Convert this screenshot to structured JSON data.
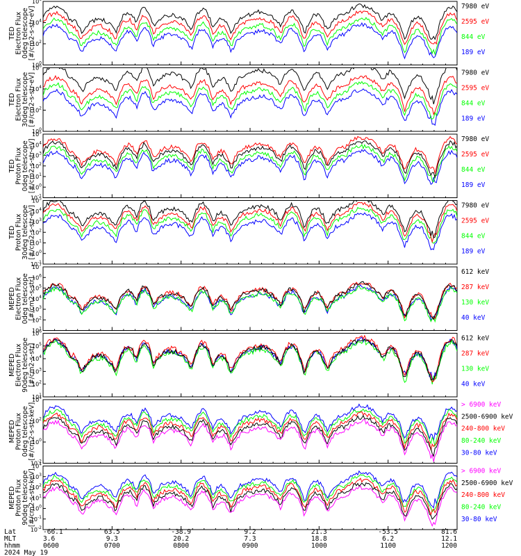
{
  "colors": {
    "blue": "#0000ff",
    "red": "#ff0000",
    "green": "#00ff00",
    "black": "#000000",
    "magenta": "#ff00ff"
  },
  "chart_data": [
    {
      "type": "line",
      "ylabel": [
        "TED",
        "Electron Flux",
        "0deg telescope",
        "[#/cm2-s-str-eV]"
      ],
      "yscale": "log",
      "ylim_exp": [
        0,
        6
      ],
      "yticks": [
        "10^0",
        "10^2",
        "10^4",
        "10^6"
      ],
      "legend": [
        {
          "name": "7980 eV",
          "color": "#000000"
        },
        {
          "name": "2595 eV",
          "color": "#ff0000"
        },
        {
          "name": "844 eV",
          "color": "#00ff00"
        },
        {
          "name": "189 eV",
          "color": "#0000ff"
        }
      ],
      "series_levels": [
        2.3,
        1.8,
        1.3,
        0.9
      ]
    },
    {
      "type": "line",
      "ylabel": [
        "TED",
        "Electron Flux",
        "30deg telescope",
        "[#/cm2-s-str-eV]"
      ],
      "yscale": "log",
      "ylim_exp": [
        0,
        6
      ],
      "yticks": [
        "10^0",
        "10^2",
        "10^4",
        "10^6"
      ],
      "legend": [
        {
          "name": "7980 eV",
          "color": "#000000"
        },
        {
          "name": "2595 eV",
          "color": "#ff0000"
        },
        {
          "name": "844 eV",
          "color": "#00ff00"
        },
        {
          "name": "189 eV",
          "color": "#0000ff"
        }
      ],
      "series_levels": [
        3.0,
        2.0,
        1.5,
        1.0
      ]
    },
    {
      "type": "line",
      "ylabel": [
        "TED",
        "Proton Flux",
        "0deg telescope",
        "[#/cm2-s-str-eV]"
      ],
      "yscale": "log",
      "ylim_exp": [
        -1,
        5
      ],
      "yticks": [
        "10^-1",
        "10^0",
        "10^1",
        "10^2",
        "10^3",
        "10^4",
        "10^5"
      ],
      "legend": [
        {
          "name": "7980 eV",
          "color": "#000000"
        },
        {
          "name": "2595 eV",
          "color": "#ff0000"
        },
        {
          "name": "844 eV",
          "color": "#00ff00"
        },
        {
          "name": "189 eV",
          "color": "#0000ff"
        }
      ],
      "series_levels": [
        1.0,
        1.5,
        0.8,
        0.5
      ]
    },
    {
      "type": "line",
      "ylabel": [
        "TED",
        "Proton Flux",
        "30deg telescope",
        "[#/cm2-s-str-eV]"
      ],
      "yscale": "log",
      "ylim_exp": [
        -1,
        5
      ],
      "yticks": [
        "10^-1",
        "10^0",
        "10^1",
        "10^2",
        "10^3",
        "10^4",
        "10^5"
      ],
      "legend": [
        {
          "name": "7980 eV",
          "color": "#000000"
        },
        {
          "name": "2595 eV",
          "color": "#ff0000"
        },
        {
          "name": "844 eV",
          "color": "#00ff00"
        },
        {
          "name": "189 eV",
          "color": "#0000ff"
        }
      ],
      "series_levels": [
        1.8,
        1.5,
        1.2,
        0.8
      ]
    },
    {
      "type": "line",
      "ylabel": [
        "MEPED",
        "Electron Flux",
        "0deg telescope",
        "[#/cm2-s-str]"
      ],
      "yscale": "log",
      "ylim_exp": [
        1,
        7
      ],
      "yticks": [
        "10^1",
        "10^2",
        "10^3",
        "10^4",
        "10^5",
        "10^6",
        "10^7"
      ],
      "legend": [
        {
          "name": "612 keV",
          "color": "#000000"
        },
        {
          "name": "287 keV",
          "color": "#ff0000"
        },
        {
          "name": "130 keV",
          "color": "#00ff00"
        },
        {
          "name": "40 keV",
          "color": "#0000ff"
        }
      ],
      "series_levels": [
        2.1,
        2.3,
        2.0,
        2.2
      ]
    },
    {
      "type": "line",
      "ylabel": [
        "MEPED",
        "Electron Flux",
        "90deg telescope",
        "[#/cm2-s-str]"
      ],
      "yscale": "log",
      "ylim_exp": [
        1,
        6
      ],
      "yticks": [
        "10^1",
        "10^2",
        "10^3",
        "10^4",
        "10^5",
        "10^6"
      ],
      "legend": [
        {
          "name": "612 keV",
          "color": "#000000"
        },
        {
          "name": "287 keV",
          "color": "#ff0000"
        },
        {
          "name": "130 keV",
          "color": "#00ff00"
        },
        {
          "name": "40 keV",
          "color": "#0000ff"
        }
      ],
      "series_levels": [
        2.2,
        2.5,
        2.3,
        2.6
      ]
    },
    {
      "type": "line",
      "ylabel": [
        "MEPED",
        "Proton Flux",
        "0deg telescope",
        "[#/cm2-s-str-keV]"
      ],
      "yscale": "log",
      "ylim_exp": [
        -2,
        4
      ],
      "yticks": [
        "10^-2",
        "10^0",
        "10^2",
        "10^4"
      ],
      "legend": [
        {
          "name": "> 6900 keV",
          "color": "#ff00ff"
        },
        {
          "name": "2500-6900 keV",
          "color": "#000000"
        },
        {
          "name": "240-800 keV",
          "color": "#ff0000"
        },
        {
          "name": "80-240 keV",
          "color": "#00ff00"
        },
        {
          "name": "30-80 keV",
          "color": "#0000ff"
        }
      ],
      "series_levels": [
        -1.5,
        -1.0,
        -0.5,
        0.0,
        0.5
      ]
    },
    {
      "type": "line",
      "ylabel": [
        "MEPED",
        "Proton Flux",
        "90deg telescope",
        "[#/cm2-s-str-keV]"
      ],
      "yscale": "log",
      "ylim_exp": [
        -2,
        4
      ],
      "yticks": [
        "10^-2",
        "10^-1",
        "10^0",
        "10^1",
        "10^2",
        "10^3",
        "10^4"
      ],
      "legend": [
        {
          "name": "> 6900 keV",
          "color": "#ff00ff"
        },
        {
          "name": "2500-6900 keV",
          "color": "#000000"
        },
        {
          "name": "240-800 keV",
          "color": "#ff0000"
        },
        {
          "name": "80-240 keV",
          "color": "#00ff00"
        },
        {
          "name": "30-80 keV",
          "color": "#0000ff"
        }
      ],
      "series_levels": [
        -1.5,
        -1.0,
        -0.5,
        0.0,
        0.5
      ]
    }
  ],
  "axis_footer": {
    "row_labels": [
      "Lat",
      "MLT",
      "hhmm",
      "2024 May 19"
    ],
    "columns": [
      {
        "lat": "-66.1",
        "mlt": "3.6",
        "hhmm": "0600"
      },
      {
        "lat": "63.5",
        "mlt": "9.3",
        "hhmm": "0700"
      },
      {
        "lat": "-38.9",
        "mlt": "20.2",
        "hhmm": "0800"
      },
      {
        "lat": "9.2",
        "mlt": "7.3",
        "hhmm": "0900"
      },
      {
        "lat": "21.3",
        "mlt": "18.8",
        "hhmm": "1000"
      },
      {
        "lat": "-53.5",
        "mlt": "6.2",
        "hhmm": "1100"
      },
      {
        "lat": "81.6",
        "mlt": "12.1",
        "hhmm": "1200"
      }
    ]
  },
  "passes": [
    {
      "center": 0.03,
      "width": 0.03,
      "peak": 2.8
    },
    {
      "center": 0.07,
      "width": 0.02,
      "peak": 1.5
    },
    {
      "center": 0.135,
      "width": 0.035,
      "peak": 1.6
    },
    {
      "center": 0.205,
      "width": 0.02,
      "peak": 2.2
    },
    {
      "center": 0.245,
      "width": 0.015,
      "peak": 2.6
    },
    {
      "center": 0.31,
      "width": 0.04,
      "peak": 2.0
    },
    {
      "center": 0.385,
      "width": 0.018,
      "peak": 2.5
    },
    {
      "center": 0.43,
      "width": 0.02,
      "peak": 1.6
    },
    {
      "center": 0.495,
      "width": 0.03,
      "peak": 2.0
    },
    {
      "center": 0.525,
      "width": 0.04,
      "peak": 2.3
    },
    {
      "center": 0.6,
      "width": 0.02,
      "peak": 2.4
    },
    {
      "center": 0.66,
      "width": 0.02,
      "peak": 2.0
    },
    {
      "center": 0.725,
      "width": 0.03,
      "peak": 2.0
    },
    {
      "center": 0.77,
      "width": 0.04,
      "peak": 2.9
    },
    {
      "center": 0.84,
      "width": 0.02,
      "peak": 2.2
    },
    {
      "center": 0.905,
      "width": 0.02,
      "peak": 1.8
    },
    {
      "center": 0.985,
      "width": 0.02,
      "peak": 2.8
    }
  ]
}
